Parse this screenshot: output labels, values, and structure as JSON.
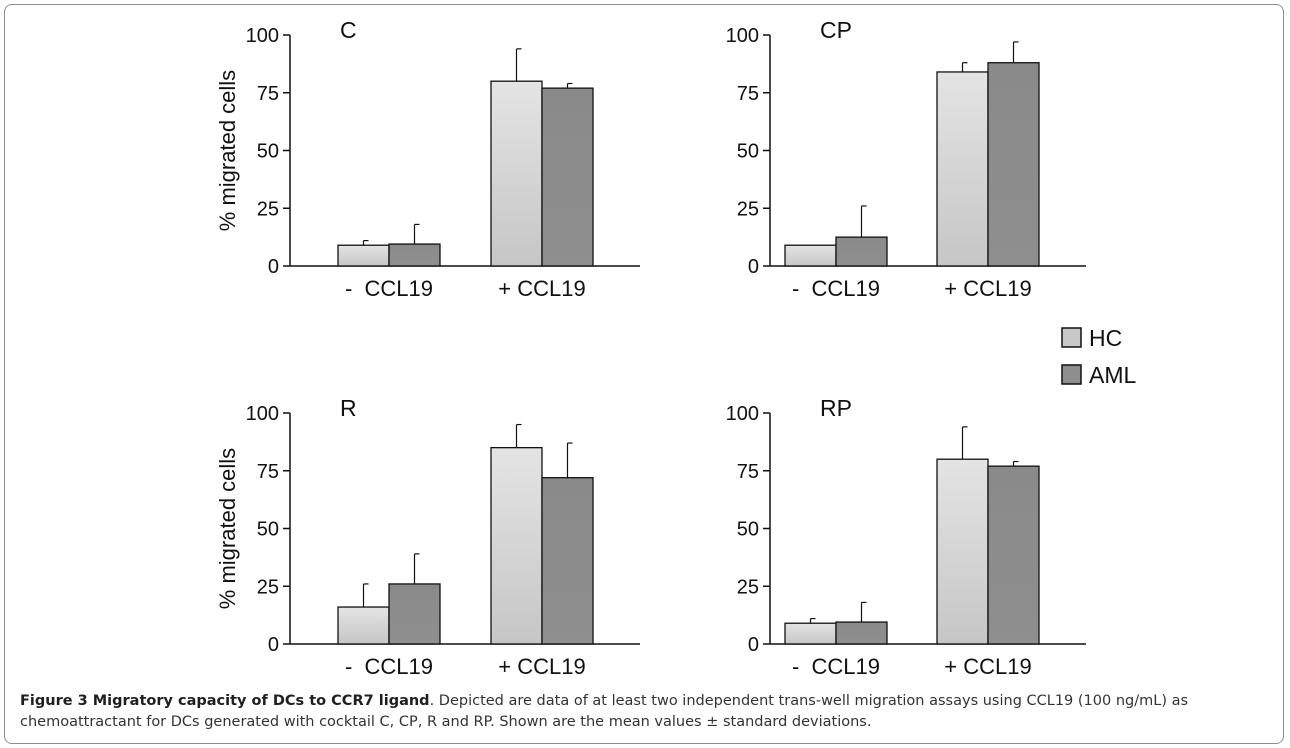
{
  "chart_data": {
    "type": "bar",
    "y_label": "% migrated cells",
    "ylim": [
      0,
      100
    ],
    "y_ticks": [
      "0",
      "25",
      "50",
      "75",
      "100"
    ],
    "categories": [
      "-  CCL19",
      "+ CCL19"
    ],
    "legend": [
      {
        "name": "HC",
        "color": "#c8c8c8"
      },
      {
        "name": "AML",
        "color": "#8e8e8e"
      }
    ],
    "panels": [
      {
        "label": "C",
        "series": [
          {
            "name": "HC",
            "values": [
              9,
              80
            ],
            "errors": [
              2,
              14
            ]
          },
          {
            "name": "AML",
            "values": [
              9.5,
              77
            ],
            "errors": [
              8.5,
              2
            ]
          }
        ]
      },
      {
        "label": "CP",
        "series": [
          {
            "name": "HC",
            "values": [
              9,
              84
            ],
            "errors": [
              0,
              4
            ]
          },
          {
            "name": "AML",
            "values": [
              12.5,
              88
            ],
            "errors": [
              13.5,
              9
            ]
          }
        ]
      },
      {
        "label": "R",
        "series": [
          {
            "name": "HC",
            "values": [
              16,
              85
            ],
            "errors": [
              10,
              10
            ]
          },
          {
            "name": "AML",
            "values": [
              26,
              72
            ],
            "errors": [
              13,
              15
            ]
          }
        ]
      },
      {
        "label": "RP",
        "series": [
          {
            "name": "HC",
            "values": [
              9,
              80
            ],
            "errors": [
              2,
              14
            ]
          },
          {
            "name": "AML",
            "values": [
              9.5,
              77
            ],
            "errors": [
              8.5,
              2
            ]
          }
        ]
      }
    ]
  },
  "caption": {
    "title": "Figure 3 Migratory capacity of DCs to CCR7 ligand",
    "text": ". Depicted are data of at least two independent trans-well migration assays using CCL19 (100 ng/mL) as chemoattractant for DCs generated with cocktail C, CP, R and RP. Shown are the mean values ± standard deviations."
  }
}
